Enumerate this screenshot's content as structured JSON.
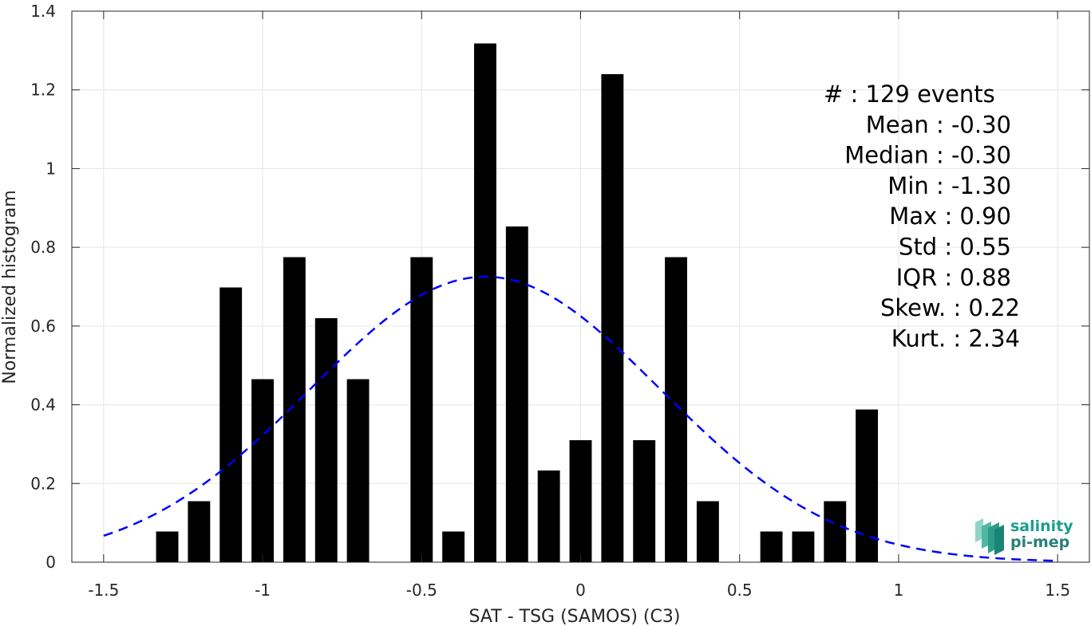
{
  "chart_data": {
    "type": "bar",
    "xlabel": "SAT - TSG (SAMOS) (C3)",
    "ylabel": "Normalized histogram",
    "xlim": [
      -1.6,
      1.6
    ],
    "ylim": [
      0,
      1.4
    ],
    "grid": true,
    "x_ticks": [
      -1.5,
      -1,
      -0.5,
      0,
      0.5,
      1,
      1.5
    ],
    "x_tick_labels": [
      "-1.5",
      "-1",
      "-0.5",
      "0",
      "0.5",
      "1",
      "1.5"
    ],
    "y_ticks": [
      0,
      0.2,
      0.4,
      0.6,
      0.8,
      1,
      1.2,
      1.4
    ],
    "y_tick_labels": [
      "0",
      "0.2",
      "0.4",
      "0.6",
      "0.8",
      "1",
      "1.2",
      "1.4"
    ],
    "bar_width": 0.07,
    "bars": [
      {
        "x": -1.3,
        "value": 0.078
      },
      {
        "x": -1.2,
        "value": 0.155
      },
      {
        "x": -1.1,
        "value": 0.698
      },
      {
        "x": -1.0,
        "value": 0.465
      },
      {
        "x": -0.9,
        "value": 0.775
      },
      {
        "x": -0.8,
        "value": 0.62
      },
      {
        "x": -0.7,
        "value": 0.465
      },
      {
        "x": -0.5,
        "value": 0.775
      },
      {
        "x": -0.4,
        "value": 0.078
      },
      {
        "x": -0.3,
        "value": 1.318
      },
      {
        "x": -0.2,
        "value": 0.853
      },
      {
        "x": -0.1,
        "value": 0.233
      },
      {
        "x": 0.0,
        "value": 0.31
      },
      {
        "x": 0.1,
        "value": 1.24
      },
      {
        "x": 0.2,
        "value": 0.31
      },
      {
        "x": 0.3,
        "value": 0.775
      },
      {
        "x": 0.4,
        "value": 0.155
      },
      {
        "x": 0.6,
        "value": 0.078
      },
      {
        "x": 0.7,
        "value": 0.078
      },
      {
        "x": 0.8,
        "value": 0.155
      },
      {
        "x": 0.9,
        "value": 0.388
      }
    ],
    "fit_curve": {
      "type": "normal",
      "mean": -0.3,
      "std": 0.55,
      "x_range": [
        -1.5,
        1.5
      ],
      "color": "#0000ff",
      "dashed": true
    },
    "bar_color": "#000000"
  },
  "stats": [
    {
      "label": "#",
      "sep": ": ",
      "value": "129 events"
    },
    {
      "label": "Mean",
      "sep": " : ",
      "value": "-0.30"
    },
    {
      "label": "Median",
      "sep": " : ",
      "value": "-0.30"
    },
    {
      "label": "Min",
      "sep": " : ",
      "value": "-1.30"
    },
    {
      "label": "Max",
      "sep": " : ",
      "value": "0.90"
    },
    {
      "label": "Std",
      "sep": " : ",
      "value": "0.55"
    },
    {
      "label": "IQR",
      "sep": " : ",
      "value": "0.88"
    },
    {
      "label": "Skew.",
      "sep": " : ",
      "value": "0.22"
    },
    {
      "label": "Kurt.",
      "sep": " : ",
      "value": "2.34"
    }
  ],
  "logo": {
    "line1": "salinity",
    "line2": "pi-mep",
    "color1": "#1a9e8f",
    "color2": "#2a7f7a"
  }
}
